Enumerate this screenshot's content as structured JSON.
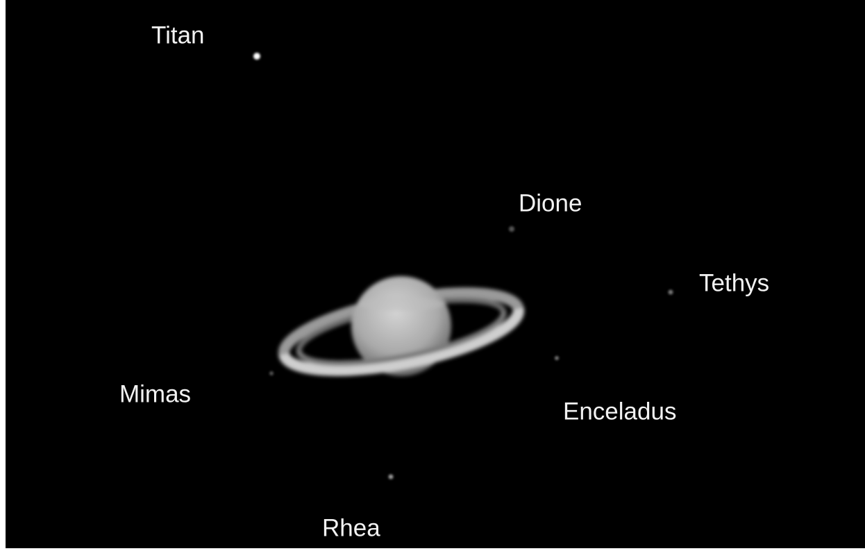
{
  "moons": [
    {
      "label": "Titan"
    },
    {
      "label": "Dione"
    },
    {
      "label": "Tethys"
    },
    {
      "label": "Mimas"
    },
    {
      "label": "Enceladus"
    },
    {
      "label": "Rhea"
    }
  ]
}
